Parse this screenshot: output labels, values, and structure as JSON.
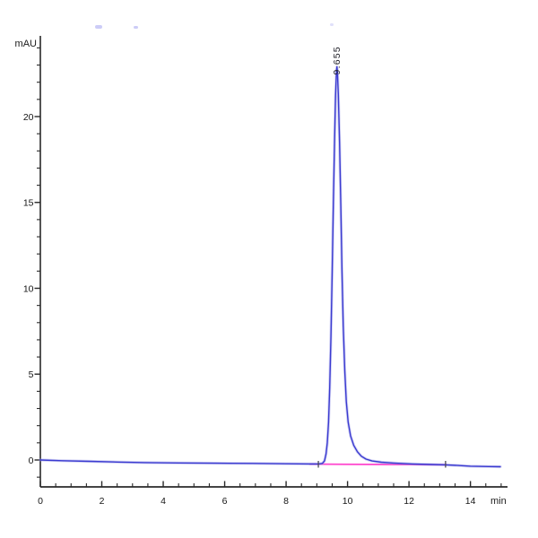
{
  "chart_data": {
    "type": "line",
    "subtype": "hplc-chromatogram",
    "title": "",
    "ylabel": "mAU",
    "xlabel_unit": "min",
    "grid": false,
    "legend": false,
    "x_axis": {
      "range": [
        0,
        15.2
      ],
      "minor_tick_step": 0.5,
      "minor_tick_range": [
        0,
        15
      ],
      "major_ticks": [
        {
          "v": 0,
          "label": "0"
        },
        {
          "v": 2,
          "label": "2"
        },
        {
          "v": 4,
          "label": "4"
        },
        {
          "v": 6,
          "label": "6"
        },
        {
          "v": 8,
          "label": "8"
        },
        {
          "v": 10,
          "label": "10"
        },
        {
          "v": 12,
          "label": "12"
        },
        {
          "v": 14,
          "label": "14"
        }
      ]
    },
    "y_axis": {
      "range": [
        -1.5,
        24.7
      ],
      "minor_tick_step": 1,
      "minor_tick_range": [
        -1,
        24
      ],
      "major_ticks": [
        {
          "v": 0,
          "label": "0"
        },
        {
          "v": 5,
          "label": "5"
        },
        {
          "v": 10,
          "label": "10"
        },
        {
          "v": 15,
          "label": "15"
        },
        {
          "v": 20,
          "label": "20"
        }
      ]
    },
    "series": [
      {
        "name": "uv-signal",
        "color": "#3a3ad0",
        "points": [
          [
            0.0,
            0.0
          ],
          [
            0.7,
            -0.04
          ],
          [
            1.6,
            -0.08
          ],
          [
            2.5,
            -0.12
          ],
          [
            3.4,
            -0.15
          ],
          [
            4.5,
            -0.17
          ],
          [
            5.7,
            -0.19
          ],
          [
            6.9,
            -0.2
          ],
          [
            8.0,
            -0.22
          ],
          [
            8.8,
            -0.23
          ],
          [
            9.05,
            -0.23
          ],
          [
            9.18,
            -0.2
          ],
          [
            9.25,
            -0.05
          ],
          [
            9.3,
            0.35
          ],
          [
            9.34,
            1.0
          ],
          [
            9.38,
            2.2
          ],
          [
            9.42,
            4.2
          ],
          [
            9.46,
            7.2
          ],
          [
            9.5,
            11.0
          ],
          [
            9.54,
            15.0
          ],
          [
            9.58,
            18.8
          ],
          [
            9.61,
            21.2
          ],
          [
            9.64,
            22.7
          ],
          [
            9.655,
            22.9
          ],
          [
            9.67,
            22.6
          ],
          [
            9.7,
            21.3
          ],
          [
            9.74,
            18.5
          ],
          [
            9.78,
            14.8
          ],
          [
            9.82,
            11.0
          ],
          [
            9.86,
            7.8
          ],
          [
            9.91,
            5.2
          ],
          [
            9.96,
            3.4
          ],
          [
            10.02,
            2.2
          ],
          [
            10.1,
            1.4
          ],
          [
            10.2,
            0.85
          ],
          [
            10.32,
            0.48
          ],
          [
            10.45,
            0.22
          ],
          [
            10.6,
            0.05
          ],
          [
            10.8,
            -0.06
          ],
          [
            11.1,
            -0.13
          ],
          [
            11.5,
            -0.18
          ],
          [
            12.1,
            -0.23
          ],
          [
            12.7,
            -0.26
          ],
          [
            13.19,
            -0.28
          ],
          [
            13.6,
            -0.32
          ],
          [
            14.0,
            -0.36
          ],
          [
            14.6,
            -0.38
          ],
          [
            14.97,
            -0.39
          ]
        ]
      },
      {
        "name": "integration-baseline",
        "color": "#ff4fd0",
        "points": [
          [
            8.78,
            -0.24
          ],
          [
            13.22,
            -0.28
          ]
        ]
      }
    ],
    "peaks": [
      {
        "label": "9.655",
        "retention_time_min": 9.655,
        "height_mAU": 22.9
      }
    ],
    "integration_marks_min": [
      9.05,
      13.19
    ]
  }
}
